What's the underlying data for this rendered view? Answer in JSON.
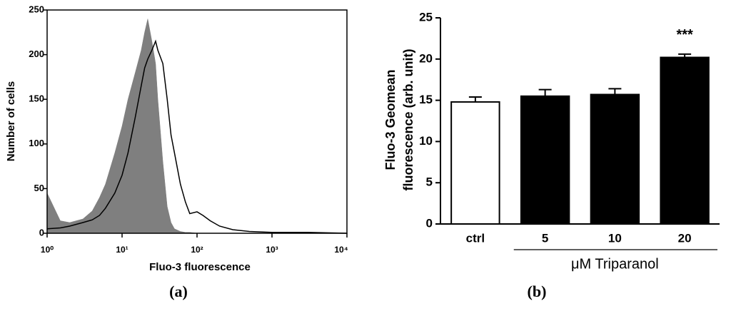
{
  "chart_data": [
    {
      "type": "line",
      "xlabel": "Fluo-3 fluorescence",
      "ylabel": "Number of cells",
      "panel_label": "(a)",
      "xscale": "log",
      "xlim": [
        1,
        10000
      ],
      "xticks": [
        {
          "value": 1,
          "label": "10⁰"
        },
        {
          "value": 10,
          "label": "10¹"
        },
        {
          "value": 100,
          "label": "10²"
        },
        {
          "value": 1000,
          "label": "10³"
        },
        {
          "value": 10000,
          "label": "10⁴"
        }
      ],
      "ylim": [
        0,
        250
      ],
      "yticks": [
        0,
        50,
        100,
        150,
        200,
        250
      ],
      "x": [
        1,
        1.5,
        2,
        3,
        4,
        5,
        6,
        8,
        10,
        12,
        15,
        18,
        20,
        22,
        25,
        28,
        30,
        35,
        40,
        45,
        50,
        60,
        70,
        80,
        100,
        120,
        150,
        200,
        300,
        500,
        1000,
        3000,
        10000
      ],
      "series": [
        {
          "color": "#7f7f7f",
          "fill": true,
          "values": [
            45,
            14,
            12,
            16,
            25,
            40,
            55,
            90,
            120,
            150,
            180,
            205,
            225,
            240,
            215,
            190,
            150,
            80,
            30,
            12,
            5,
            2,
            1,
            1,
            0,
            0,
            0,
            0,
            0,
            0,
            0,
            0,
            0
          ]
        },
        {
          "color": "#000000",
          "fill": false,
          "values": [
            5,
            6,
            8,
            12,
            15,
            20,
            28,
            45,
            65,
            90,
            130,
            165,
            185,
            195,
            205,
            215,
            205,
            190,
            150,
            110,
            90,
            55,
            35,
            22,
            24,
            20,
            14,
            8,
            4,
            2,
            1,
            1,
            0
          ]
        }
      ]
    },
    {
      "type": "bar",
      "ylabel": [
        "Fluo-3 Geomean",
        "fluorescence (arb. unit)"
      ],
      "panel_label": "(b)",
      "categories": [
        "ctrl",
        "5",
        "10",
        "20"
      ],
      "values": [
        14.8,
        15.5,
        15.7,
        20.2
      ],
      "errors": [
        0.6,
        0.8,
        0.7,
        0.4
      ],
      "colors": [
        "#ffffff",
        "#000000",
        "#000000",
        "#000000"
      ],
      "significance": [
        null,
        null,
        null,
        "***"
      ],
      "group_label": "μM Triparanol",
      "ylim": [
        0,
        25
      ],
      "yticks": [
        0,
        5,
        10,
        15,
        20,
        25
      ]
    }
  ]
}
